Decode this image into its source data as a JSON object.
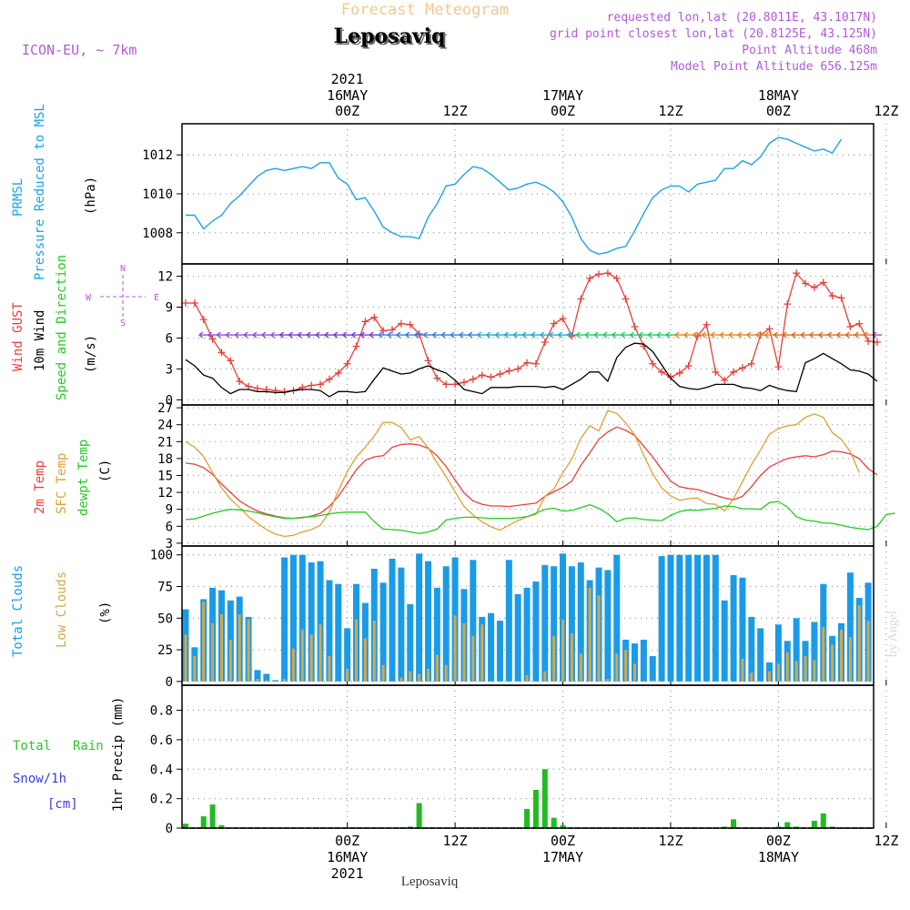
{
  "header": {
    "chart_type": "Forecast Meteogram",
    "location": "Leposaviq",
    "model": "ICON-EU, ~ 7km",
    "requested": "requested lon,lat (20.8011E, 43.1017N)",
    "grid_point": "grid point closest lon,lat (20.8125E, 43.125N)",
    "point_altitude": "Point Altitude 468m",
    "model_altitude": "Model Point Altitude 656.125m",
    "footer_location": "Leposaviq",
    "credit": "by Angel"
  },
  "colors": {
    "pressure": "#1aa3e8",
    "gust": "#e8403a",
    "wind": "#000000",
    "temp": "#e8403a",
    "sfc_temp": "#e0a030",
    "dewpt": "#22cc22",
    "total_clouds": "#1a9be8",
    "low_clouds": "#d4a84a",
    "rain": "#22bb22",
    "snow": "#3a3ae8",
    "header_purple": "#b05ad8",
    "header_orange": "#f0c890"
  },
  "time_axis": {
    "top_labels": [
      {
        "line1": "2021",
        "line2": "16MAY",
        "line3": "00Z",
        "hour": 18
      },
      {
        "line1": "",
        "line2": "",
        "line3": "12Z",
        "hour": 30
      },
      {
        "line1": "",
        "line2": "17MAY",
        "line3": "00Z",
        "hour": 42
      },
      {
        "line1": "",
        "line2": "",
        "line3": "12Z",
        "hour": 54
      },
      {
        "line1": "",
        "line2": "18MAY",
        "line3": "00Z",
        "hour": 66
      },
      {
        "line1": "",
        "line2": "",
        "line3": "12Z",
        "hour": 78
      }
    ],
    "bottom_labels": [
      {
        "line1": "00Z",
        "line2": "16MAY",
        "line3": "2021",
        "hour": 18
      },
      {
        "line1": "12Z",
        "line2": "",
        "line3": "",
        "hour": 30
      },
      {
        "line1": "00Z",
        "line2": "17MAY",
        "line3": "",
        "hour": 42
      },
      {
        "line1": "12Z",
        "line2": "",
        "line3": "",
        "hour": 54
      },
      {
        "line1": "00Z",
        "line2": "18MAY",
        "line3": "",
        "hour": 66
      },
      {
        "line1": "12Z",
        "line2": "",
        "line3": "",
        "hour": 78
      }
    ]
  },
  "chart_data": [
    {
      "type": "line",
      "panel": "pressure",
      "ylabel_lines": [
        "PRMSL",
        "Pressure Reduced to MSL"
      ],
      "unit": "(hPa)",
      "ylim": [
        1006.4,
        1013.6
      ],
      "yticks": [
        1008,
        1010,
        1012
      ],
      "x_hours": [
        0,
        1,
        2,
        3,
        4,
        5,
        6,
        7,
        8,
        9,
        10,
        11,
        12,
        13,
        14,
        15,
        16,
        17,
        18,
        19,
        20,
        21,
        22,
        23,
        24,
        25,
        26,
        27,
        28,
        29,
        30,
        31,
        32,
        33,
        34,
        35,
        36,
        37,
        38,
        39,
        40,
        41,
        42,
        43,
        44,
        45,
        46,
        47,
        48,
        49,
        50,
        51,
        52,
        53,
        54,
        55,
        56,
        57,
        58,
        59,
        60,
        61,
        62,
        63,
        64,
        65,
        66,
        67,
        68,
        69,
        70,
        71,
        72,
        73,
        74,
        75,
        76,
        77,
        78,
        79,
        80,
        81,
        82,
        83,
        84,
        85,
        86,
        87,
        88,
        89,
        90,
        91,
        92,
        93,
        94,
        95,
        96
      ],
      "series": [
        {
          "name": "PRMSL",
          "values": [
            1008.9,
            1008.9,
            1008.2,
            1008.6,
            1008.9,
            1009.5,
            1009.9,
            1010.4,
            1010.9,
            1011.2,
            1011.3,
            1011.2,
            1011.3,
            1011.4,
            1011.3,
            1011.6,
            1011.6,
            1010.8,
            1010.5,
            1009.7,
            1009.8,
            1009.1,
            1008.3,
            1008.0,
            1007.8,
            1007.8,
            1007.7,
            1008.8,
            1009.5,
            1010.4,
            1010.5,
            1011.0,
            1011.4,
            1011.3,
            1011.0,
            1010.6,
            1010.2,
            1010.3,
            1010.5,
            1010.6,
            1010.4,
            1010.1,
            1009.6,
            1008.8,
            1007.7,
            1007.1,
            1006.9,
            1007.0,
            1007.2,
            1007.3,
            1008.1,
            1009.0,
            1009.8,
            1010.2,
            1010.4,
            1010.4,
            1010.1,
            1010.5,
            1010.6,
            1010.7,
            1011.3,
            1011.3,
            1011.7,
            1011.5,
            1011.9,
            1012.6,
            1012.9,
            1012.8,
            1012.6,
            1012.4,
            1012.2,
            1012.3,
            1012.1,
            1012.8
          ]
        }
      ]
    },
    {
      "type": "line",
      "panel": "wind",
      "ylabel_lines": [
        "Wind GUST",
        "10m Wind",
        "Speed and Direction"
      ],
      "unit": "(m/s)",
      "compass": [
        "N",
        "W",
        "E",
        "S"
      ],
      "ylim": [
        -0.5,
        13.2
      ],
      "yticks": [
        0,
        3,
        6,
        9,
        12
      ],
      "series": [
        {
          "name": "Wind GUST",
          "values": [
            9.4,
            9.4,
            7.8,
            5.9,
            4.6,
            3.8,
            1.8,
            1.3,
            1.1,
            1.0,
            0.9,
            0.8,
            0.9,
            1.2,
            1.4,
            1.5,
            2.0,
            2.6,
            3.5,
            5.2,
            7.6,
            8.0,
            6.7,
            6.8,
            7.4,
            7.3,
            6.4,
            3.8,
            2.1,
            1.5,
            1.5,
            1.7,
            2.0,
            2.4,
            2.2,
            2.5,
            2.8,
            3.0,
            3.6,
            3.5,
            5.6,
            7.4,
            7.9,
            6.2,
            9.8,
            11.8,
            12.2,
            12.3,
            11.8,
            9.8,
            7.1,
            5.2,
            3.5,
            2.7,
            2.2,
            2.6,
            3.3,
            6.2,
            7.3,
            2.7,
            1.9,
            2.7,
            3.1,
            3.5,
            6.3,
            6.9,
            3.2,
            9.3,
            12.3,
            11.3,
            10.9,
            11.4,
            10.1,
            9.9,
            7.1,
            7.4,
            5.7,
            5.6
          ]
        },
        {
          "name": "10m Wind",
          "values": [
            3.9,
            3.3,
            2.4,
            2.1,
            1.2,
            0.6,
            1.0,
            1.0,
            0.8,
            0.8,
            0.7,
            0.7,
            0.9,
            1.0,
            1.0,
            0.9,
            0.3,
            0.8,
            0.8,
            0.7,
            0.8,
            2.0,
            3.1,
            2.8,
            2.5,
            2.6,
            3.0,
            3.3,
            2.9,
            2.6,
            1.9,
            1.0,
            0.8,
            0.6,
            1.2,
            1.2,
            1.2,
            1.3,
            1.3,
            1.3,
            1.2,
            1.3,
            1.0,
            1.5,
            2.0,
            2.7,
            2.7,
            1.8,
            4.1,
            5.1,
            5.5,
            5.4,
            4.7,
            3.4,
            2.1,
            1.3,
            1.1,
            1.0,
            1.2,
            1.5,
            1.5,
            1.5,
            1.2,
            1.1,
            0.9,
            1.4,
            1.1,
            0.9,
            0.8,
            3.6,
            4.0,
            4.5,
            4.0,
            3.5,
            2.9,
            2.8,
            2.5,
            1.8
          ]
        }
      ]
    },
    {
      "type": "line",
      "panel": "temperature",
      "ylabel_lines": [
        "2m Temp",
        "SFC Temp",
        "dewpt Temp"
      ],
      "unit": "(C)",
      "ylim": [
        2.5,
        27.5
      ],
      "yticks": [
        3,
        6,
        9,
        12,
        15,
        18,
        21,
        24,
        27
      ],
      "series": [
        {
          "name": "2m Temp",
          "values": [
            17.2,
            17.0,
            16.4,
            15.2,
            13.5,
            12.0,
            10.5,
            9.5,
            8.7,
            8.2,
            7.8,
            7.5,
            7.4,
            7.5,
            7.8,
            8.3,
            9.5,
            11.3,
            13.6,
            16.0,
            17.7,
            18.3,
            18.5,
            20.0,
            20.5,
            20.6,
            20.4,
            19.8,
            18.5,
            16.6,
            14.2,
            11.9,
            10.5,
            9.9,
            9.6,
            9.6,
            9.5,
            9.7,
            9.9,
            10.1,
            11.3,
            12.1,
            12.9,
            14.0,
            16.8,
            19.0,
            21.4,
            22.7,
            23.6,
            23.0,
            22.1,
            20.2,
            18.3,
            16.1,
            14.0,
            13.0,
            12.7,
            12.5,
            12.0,
            11.5,
            11.0,
            10.7,
            11.3,
            13.0,
            15.0,
            16.5,
            17.3,
            18.0,
            18.3,
            18.5,
            18.3,
            18.7,
            19.3,
            19.2,
            18.8,
            18.0,
            16.2,
            15.1
          ]
        },
        {
          "name": "SFC Temp",
          "values": [
            21.0,
            20.0,
            18.4,
            15.5,
            12.8,
            10.8,
            9.3,
            7.7,
            6.5,
            5.4,
            4.6,
            4.2,
            4.4,
            5.0,
            5.4,
            6.2,
            8.5,
            12.3,
            15.7,
            18.3,
            20.0,
            22.0,
            24.4,
            24.4,
            23.5,
            21.3,
            21.9,
            19.9,
            17.2,
            14.8,
            12.1,
            9.5,
            8.0,
            6.8,
            5.9,
            5.3,
            6.2,
            7.0,
            7.7,
            8.1,
            11.3,
            12.6,
            15.5,
            17.9,
            21.6,
            23.8,
            22.9,
            26.5,
            26.0,
            24.3,
            22.2,
            18.6,
            15.3,
            12.8,
            11.4,
            10.6,
            10.9,
            11.0,
            10.0,
            9.9,
            8.7,
            10.9,
            13.9,
            16.9,
            19.5,
            22.3,
            23.3,
            23.8,
            24.0,
            25.3,
            25.9,
            25.3,
            22.6,
            21.4,
            19.2,
            15.5
          ]
        },
        {
          "name": "dewpt Temp",
          "values": [
            7.2,
            7.3,
            7.8,
            8.3,
            8.7,
            9.0,
            8.9,
            8.7,
            8.4,
            8.0,
            7.7,
            7.4,
            7.4,
            7.6,
            7.7,
            7.9,
            8.2,
            8.4,
            8.5,
            8.5,
            8.5,
            6.8,
            5.5,
            5.4,
            5.3,
            5.0,
            4.7,
            5.0,
            5.5,
            7.1,
            7.4,
            7.6,
            7.6,
            7.5,
            7.4,
            7.4,
            7.4,
            7.5,
            7.7,
            8.3,
            9.0,
            9.2,
            8.7,
            8.8,
            9.3,
            9.8,
            9.2,
            8.2,
            6.8,
            7.4,
            7.5,
            7.2,
            7.1,
            7.0,
            7.9,
            8.6,
            8.9,
            8.8,
            9.0,
            9.2,
            9.6,
            9.5,
            9.1,
            9.1,
            9.0,
            10.2,
            10.4,
            9.4,
            7.7,
            7.1,
            6.9,
            6.6,
            6.5,
            6.2,
            5.8,
            5.6,
            5.4,
            6.0,
            8.1,
            8.3
          ]
        }
      ]
    },
    {
      "type": "bar",
      "panel": "clouds",
      "ylabel_lines": [
        "Total Clouds",
        "Low Clouds"
      ],
      "unit": "(%)",
      "ylim": [
        -3,
        107
      ],
      "yticks": [
        0,
        25,
        50,
        75,
        100
      ],
      "series": [
        {
          "name": "Total Clouds",
          "values": [
            57,
            27,
            65,
            74,
            72,
            64,
            67,
            51,
            9,
            6,
            1,
            98,
            100,
            100,
            94,
            95,
            80,
            77,
            42,
            77,
            62,
            89,
            78,
            97,
            90,
            61,
            101,
            95,
            74,
            91,
            98,
            73,
            96,
            51,
            54,
            48,
            96,
            69,
            74,
            79,
            92,
            91,
            101,
            91,
            94,
            80,
            90,
            88,
            100,
            33,
            30,
            33,
            20,
            99,
            100,
            100,
            100,
            100,
            100,
            100,
            64,
            84,
            82,
            51,
            42,
            15,
            45,
            32,
            50,
            32,
            47,
            77,
            36,
            46,
            86,
            66,
            78
          ]
        },
        {
          "name": "Low Clouds",
          "values": [
            37,
            20,
            63,
            46,
            53,
            33,
            53,
            49,
            2,
            1,
            0,
            2,
            26,
            41,
            37,
            45,
            20,
            0,
            10,
            49,
            34,
            48,
            13,
            0,
            3,
            8,
            6,
            10,
            21,
            13,
            52,
            46,
            36,
            45,
            0,
            0,
            0,
            0,
            5,
            0,
            8,
            36,
            49,
            38,
            22,
            74,
            68,
            2,
            22,
            25,
            14,
            0,
            1,
            0,
            0,
            0,
            0,
            0,
            0,
            0,
            0,
            0,
            18,
            7,
            0,
            8,
            14,
            23,
            16,
            20,
            17,
            43,
            29,
            41,
            35,
            60,
            48
          ]
        }
      ]
    },
    {
      "type": "bar",
      "panel": "precip",
      "ylabel_lines": [
        "Total",
        "Rain",
        "Snow/1h",
        "[cm]",
        "1hr Precip (mm)"
      ],
      "unit": "(mm)",
      "ylim": [
        0,
        0.97
      ],
      "yticks": [
        0,
        0.2,
        0.4,
        0.6,
        0.8
      ],
      "series": [
        {
          "name": "Total Rain",
          "values": [
            0.03,
            0,
            0.08,
            0.16,
            0.02,
            0,
            0,
            0,
            0,
            0,
            0,
            0,
            0,
            0,
            0,
            0,
            0,
            0,
            0,
            0,
            0,
            0,
            0,
            0,
            0,
            0.01,
            0.17,
            0,
            0,
            0,
            0,
            0,
            0,
            0,
            0,
            0,
            0,
            0,
            0.13,
            0.26,
            0.4,
            0.07,
            0.02,
            0,
            0,
            0,
            0,
            0,
            0,
            0,
            0,
            0,
            0,
            0,
            0,
            0,
            0,
            0,
            0,
            0,
            0.01,
            0.06,
            0,
            0,
            0,
            0,
            0.01,
            0.04,
            0.01,
            0,
            0.05,
            0.1,
            0.01,
            0,
            0,
            0,
            0
          ]
        },
        {
          "name": "Snow/1h",
          "values": [
            0
          ]
        }
      ]
    }
  ]
}
